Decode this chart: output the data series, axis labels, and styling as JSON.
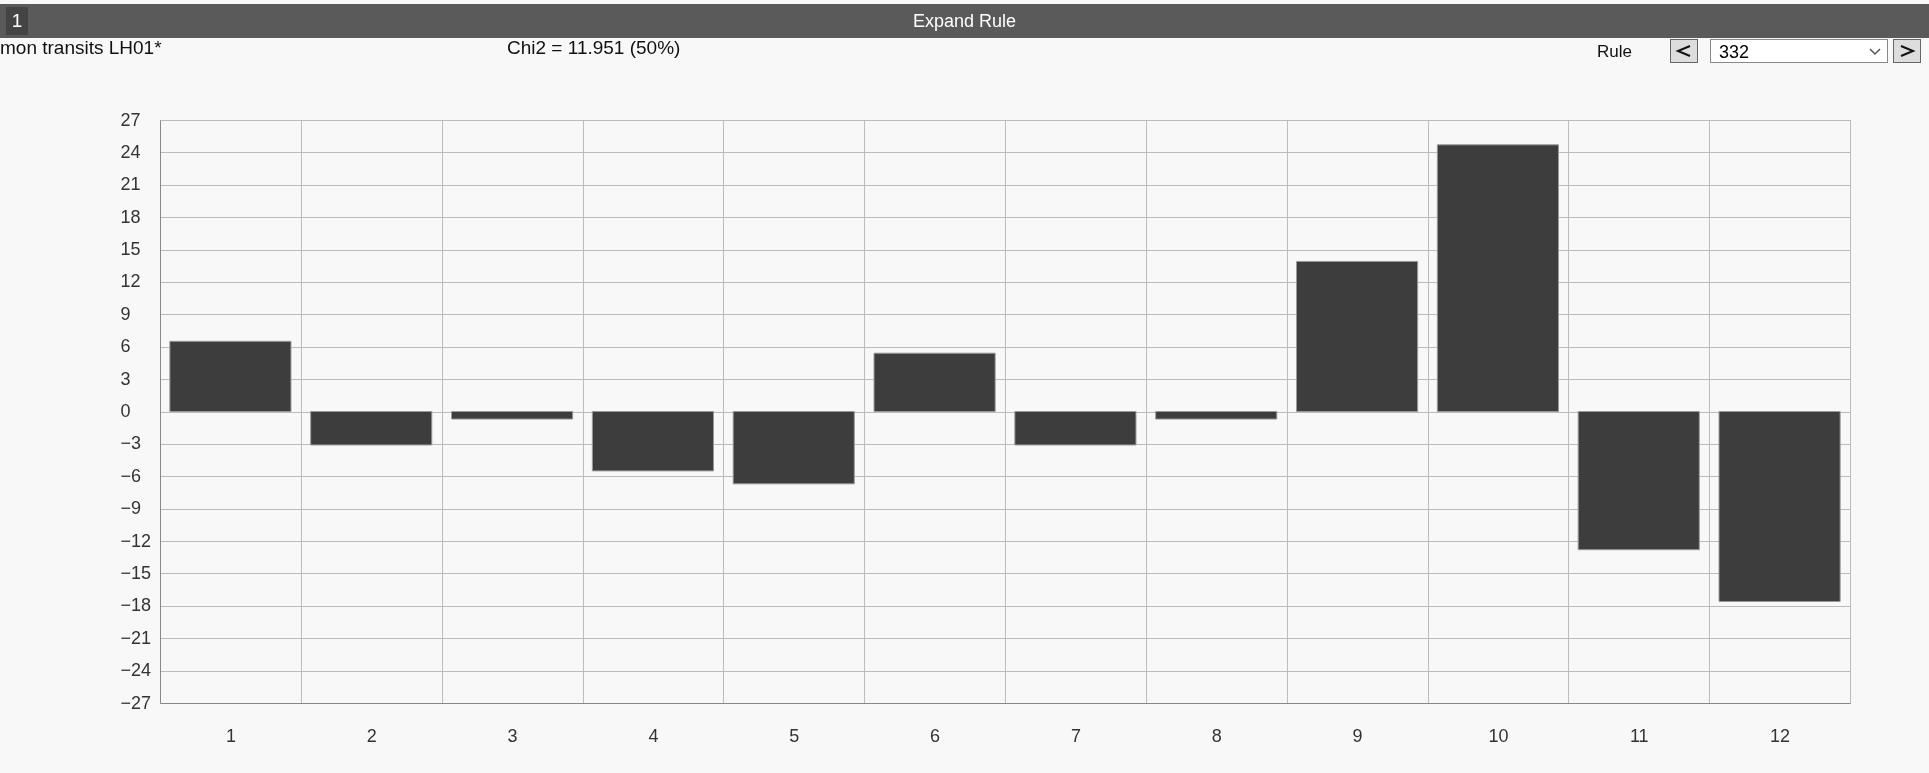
{
  "chart_data": {
    "type": "bar",
    "title": "Expand Rule",
    "annotations": [
      "1",
      "mon transits LH01*",
      "Chi2 = 11.951 (50%)",
      "Rule",
      "332"
    ],
    "categories": [
      "1",
      "2",
      "3",
      "4",
      "5",
      "6",
      "7",
      "8",
      "9",
      "10",
      "11",
      "12"
    ],
    "values": [
      6.5,
      -3.1,
      -0.7,
      -5.5,
      -6.7,
      5.4,
      -3.1,
      -0.7,
      13.9,
      24.7,
      -12.8,
      -17.6
    ],
    "color": "#3d3d3d",
    "ylim": [
      -27,
      27
    ],
    "yticks": [
      -27,
      -24,
      -21,
      -18,
      -15,
      -12,
      -9,
      -6,
      -3,
      0,
      3,
      6,
      9,
      12,
      15,
      18,
      21,
      24,
      27
    ],
    "grid": true
  }
}
